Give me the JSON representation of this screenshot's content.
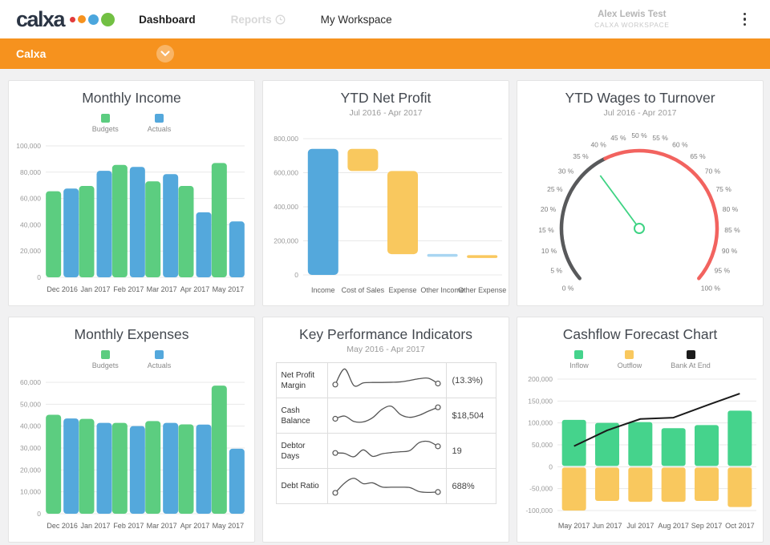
{
  "header": {
    "logo": {
      "text": "calxa",
      "text_color": "#2b3544",
      "dot_colors": [
        "#e23b3b",
        "#f6921e",
        "#4ba6dd",
        "#72c043"
      ]
    },
    "nav": [
      {
        "label": "Dashboard",
        "state": "active"
      },
      {
        "label": "Reports",
        "state": "disabled",
        "icon": "clock"
      },
      {
        "label": "My Workspace",
        "state": "normal"
      }
    ],
    "user": {
      "name": "Alex Lewis Test",
      "workspace": "CALXA WORKSPACE"
    }
  },
  "orgbar": {
    "label": "Calxa",
    "color": "#f6921e"
  },
  "chart_data": [
    {
      "id": "monthly-income",
      "type": "bar",
      "title": "Monthly Income",
      "categories": [
        "Dec 2016",
        "Jan 2017",
        "Feb 2017",
        "Mar 2017",
        "Apr 2017",
        "May 2017"
      ],
      "series": [
        {
          "name": "Budgets",
          "color": "#5ccd80",
          "values": [
            65500,
            69500,
            85500,
            73000,
            69500,
            87000
          ]
        },
        {
          "name": "Actuals",
          "color": "#54a8dc",
          "values": [
            67500,
            81000,
            84000,
            78500,
            49500,
            42500
          ]
        }
      ],
      "ylim": [
        0,
        100000
      ],
      "ystep": 20000,
      "legend": true,
      "grid": true
    },
    {
      "id": "ytd-net-profit",
      "type": "waterfall",
      "title": "YTD Net Profit",
      "subtitle": "Jul 2016 - Apr 2017",
      "categories": [
        "Income",
        "Cost of Sales",
        "Expense",
        "Other Income",
        "Other Expense"
      ],
      "bars": [
        {
          "from": 0,
          "to": 740000,
          "color": "#54a8dc"
        },
        {
          "from": 610000,
          "to": 740000,
          "color": "#f9c85e"
        },
        {
          "from": 122000,
          "to": 610000,
          "color": "#f9c85e"
        },
        {
          "from": 117000,
          "to": 123000,
          "color": "#a9d6f2"
        },
        {
          "from": 109000,
          "to": 116000,
          "color": "#f9c85e"
        }
      ],
      "ylim": [
        0,
        800000
      ],
      "ystep": 200000,
      "grid": true
    },
    {
      "id": "ytd-wages-to-turnover",
      "type": "gauge",
      "title": "YTD Wages to Turnover",
      "subtitle": "Jul 2016 - Apr 2017",
      "min": 0,
      "max": 100,
      "tick_step": 5,
      "tick_suffix": " %",
      "zones": [
        {
          "from": 0,
          "to": 40,
          "color": "#58595b"
        },
        {
          "from": 40,
          "to": 100,
          "color": "#f2635f"
        }
      ],
      "value": 36,
      "needle_color": "#3ed383"
    },
    {
      "id": "monthly-expenses",
      "type": "bar",
      "title": "Monthly Expenses",
      "categories": [
        "Dec 2016",
        "Jan 2017",
        "Feb 2017",
        "Mar 2017",
        "Apr 2017",
        "May 2017"
      ],
      "series": [
        {
          "name": "Budgets",
          "color": "#5ccd80",
          "values": [
            45200,
            43300,
            41500,
            42300,
            40800,
            58500
          ]
        },
        {
          "name": "Actuals",
          "color": "#54a8dc",
          "values": [
            43500,
            41500,
            40000,
            41500,
            40700,
            29700
          ]
        }
      ],
      "ylim": [
        0,
        60000
      ],
      "ystep": 10000,
      "legend": true,
      "grid": true
    },
    {
      "id": "kpi",
      "type": "table",
      "title": "Key Performance Indicators",
      "subtitle": "May 2016 - Apr 2017",
      "rows": [
        {
          "label": "Net Profit Margin",
          "value": "(13.3%)",
          "spark": [
            20,
            95,
            15,
            28,
            30,
            30,
            31,
            33,
            40,
            48,
            50,
            25
          ]
        },
        {
          "label": "Cash Balance",
          "value": "$18,504",
          "spark": [
            25,
            38,
            12,
            10,
            30,
            70,
            85,
            45,
            32,
            42,
            62,
            80
          ]
        },
        {
          "label": "Debtor Days",
          "value": "19",
          "spark": [
            30,
            28,
            12,
            45,
            14,
            26,
            32,
            36,
            42,
            80,
            85,
            62
          ]
        },
        {
          "label": "Debt Ratio",
          "value": "688%",
          "spark": [
            8,
            55,
            78,
            52,
            56,
            36,
            35,
            35,
            33,
            14,
            10,
            12
          ]
        }
      ]
    },
    {
      "id": "cashflow-forecast",
      "type": "combo",
      "title": "Cashflow Forecast Chart",
      "categories": [
        "May 2017",
        "Jun 2017",
        "Jul 2017",
        "Aug 2017",
        "Sep 2017",
        "Oct 2017"
      ],
      "series": [
        {
          "name": "Inflow",
          "kind": "bar",
          "color": "#45d38c",
          "values": [
            107000,
            100000,
            102000,
            88000,
            95000,
            128000
          ]
        },
        {
          "name": "Outflow",
          "kind": "bar",
          "color": "#f9c85e",
          "values": [
            -100000,
            -78000,
            -80000,
            -80000,
            -78000,
            -92000
          ]
        },
        {
          "name": "Bank At End",
          "kind": "line",
          "color": "#1b1b1b",
          "values": [
            47000,
            83000,
            109000,
            112000,
            140000,
            167000
          ]
        }
      ],
      "ylim": [
        -100000,
        200000
      ],
      "ystep": 50000,
      "legend": true,
      "grid": true
    }
  ]
}
